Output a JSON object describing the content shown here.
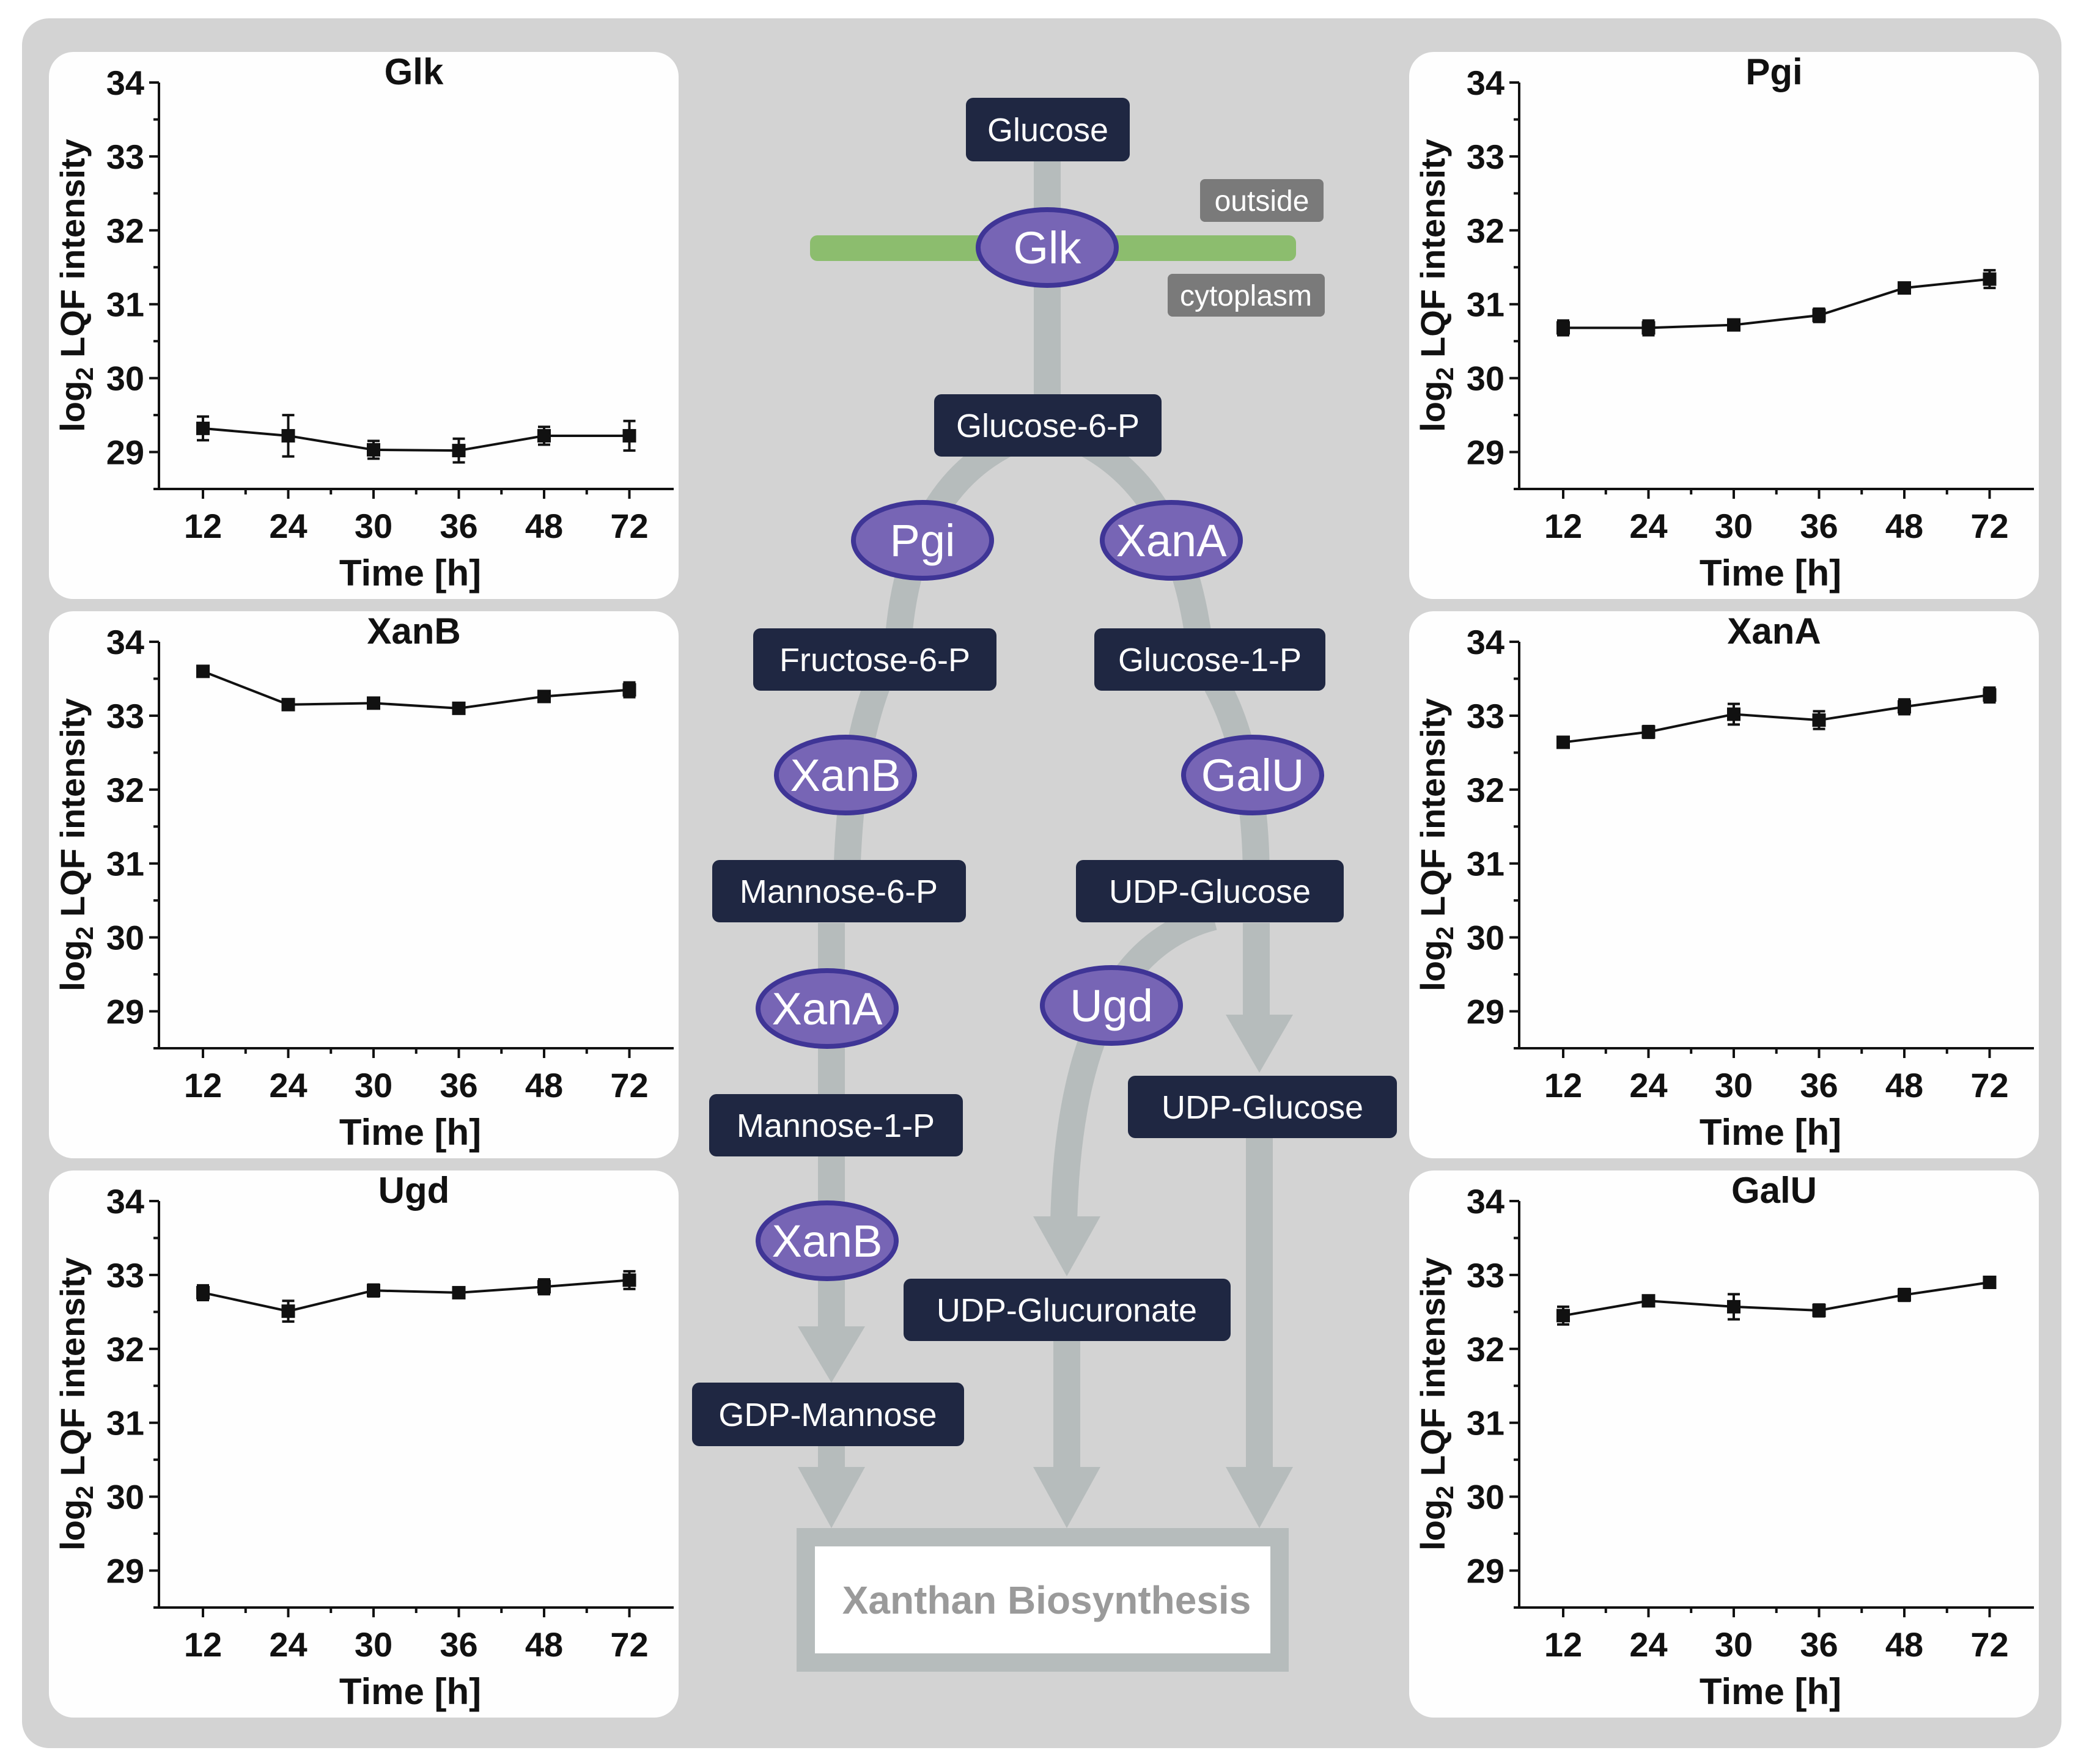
{
  "colors": {
    "background": "#d3d3d3",
    "panel": "#fefefe",
    "metabolite_box": "#1f2742",
    "enzyme_fill": "#7765b5",
    "enzyme_stroke": "#3f3596",
    "membrane": "#8cbd6e",
    "flow": "#b6bcbc",
    "location_label": "#7a7a7a",
    "product_text": "#9a9a9a"
  },
  "chart_data": [
    {
      "id": "glk",
      "type": "line",
      "title": "Glk",
      "categories": [
        "12",
        "24",
        "30",
        "36",
        "48",
        "72"
      ],
      "values": [
        29.32,
        29.22,
        29.03,
        29.02,
        29.22,
        29.22
      ],
      "errors": [
        0.16,
        0.28,
        0.12,
        0.16,
        0.12,
        0.2
      ],
      "xlabel": "Time [h]",
      "ylabel_main": "log",
      "ylabel_sub": "2",
      "ylabel_rest": " LQF intensity",
      "ylim": [
        28.5,
        34
      ],
      "yticks": [
        "29",
        "30",
        "31",
        "32",
        "33",
        "34"
      ]
    },
    {
      "id": "pgi",
      "type": "line",
      "title": "Pgi",
      "categories": [
        "12",
        "24",
        "30",
        "36",
        "48",
        "72"
      ],
      "values": [
        30.68,
        30.68,
        30.72,
        30.85,
        31.22,
        31.34
      ],
      "errors": [
        0.1,
        0.1,
        0.05,
        0.09,
        0.05,
        0.12
      ],
      "xlabel": "Time [h]",
      "ylabel_main": "log",
      "ylabel_sub": "2",
      "ylabel_rest": " LQF intensity",
      "ylim": [
        28.5,
        34
      ],
      "yticks": [
        "29",
        "30",
        "31",
        "32",
        "33",
        "34"
      ]
    },
    {
      "id": "xanb",
      "type": "line",
      "title": "XanB",
      "categories": [
        "12",
        "24",
        "30",
        "36",
        "48",
        "72"
      ],
      "values": [
        33.6,
        33.15,
        33.17,
        33.1,
        33.26,
        33.35
      ],
      "errors": [
        0.03,
        0.04,
        0.04,
        0.05,
        0.07,
        0.1
      ],
      "xlabel": "Time [h]",
      "ylabel_main": "log",
      "ylabel_sub": "2",
      "ylabel_rest": " LQF intensity",
      "ylim": [
        28.5,
        34
      ],
      "yticks": [
        "29",
        "30",
        "31",
        "32",
        "33",
        "34"
      ]
    },
    {
      "id": "xana",
      "type": "line",
      "title": "XanA",
      "categories": [
        "12",
        "24",
        "30",
        "36",
        "48",
        "72"
      ],
      "values": [
        32.64,
        32.78,
        33.02,
        32.94,
        33.12,
        33.28
      ],
      "errors": [
        0.04,
        0.08,
        0.14,
        0.12,
        0.1,
        0.1
      ],
      "xlabel": "Time [h]",
      "ylabel_main": "log",
      "ylabel_sub": "2",
      "ylabel_rest": " LQF intensity",
      "ylim": [
        28.5,
        34
      ],
      "yticks": [
        "29",
        "30",
        "31",
        "32",
        "33",
        "34"
      ]
    },
    {
      "id": "ugd",
      "type": "line",
      "title": "Ugd",
      "categories": [
        "12",
        "24",
        "30",
        "36",
        "48",
        "72"
      ],
      "values": [
        32.76,
        32.51,
        32.79,
        32.76,
        32.84,
        32.93
      ],
      "errors": [
        0.1,
        0.14,
        0.08,
        0.05,
        0.1,
        0.12
      ],
      "xlabel": "Time [h]",
      "ylabel_main": "log",
      "ylabel_sub": "2",
      "ylabel_rest": " LQF intensity",
      "ylim": [
        28.5,
        34
      ],
      "yticks": [
        "29",
        "30",
        "31",
        "32",
        "33",
        "34"
      ]
    },
    {
      "id": "galu",
      "type": "line",
      "title": "GalU",
      "categories": [
        "12",
        "24",
        "30",
        "36",
        "48",
        "72"
      ],
      "values": [
        32.45,
        32.65,
        32.57,
        32.52,
        32.73,
        32.9
      ],
      "errors": [
        0.12,
        0.07,
        0.17,
        0.08,
        0.08,
        0.07
      ],
      "xlabel": "Time [h]",
      "ylabel_main": "log",
      "ylabel_sub": "2",
      "ylabel_rest": " LQF intensity",
      "ylim": [
        28.5,
        34
      ],
      "yticks": [
        "29",
        "30",
        "31",
        "32",
        "33",
        "34"
      ]
    }
  ],
  "pathway": {
    "locations": {
      "outside": "outside",
      "cytoplasm": "cytoplasm"
    },
    "metabolites": {
      "glucose": "Glucose",
      "glucose_6_p": "Glucose-6-P",
      "fructose_6_p": "Fructose-6-P",
      "glucose_1_p": "Glucose-1-P",
      "mannose_6_p": "Mannose-6-P",
      "udp_glucose_1": "UDP-Glucose",
      "mannose_1_p": "Mannose-1-P",
      "udp_glucose_2": "UDP-Glucose",
      "udp_glucuronate": "UDP-Glucuronate",
      "gdp_mannose": "GDP-Mannose"
    },
    "enzymes": {
      "glk": "Glk",
      "pgi": "Pgi",
      "xana_right": "XanA",
      "xanb_left": "XanB",
      "galu": "GalU",
      "xana_left": "XanA",
      "ugd": "Ugd",
      "xanb_bottom": "XanB"
    },
    "product": "Xanthan Biosynthesis"
  }
}
